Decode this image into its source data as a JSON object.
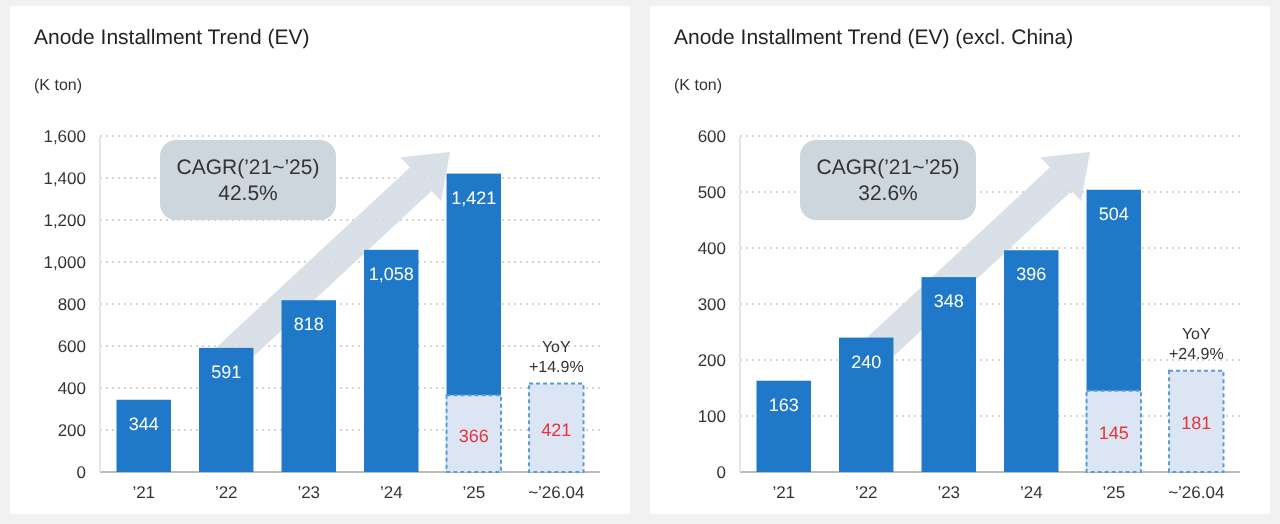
{
  "chart_data": [
    {
      "type": "bar",
      "title": "Anode Installment Trend (EV)",
      "ylabel": "(K ton)",
      "categories": [
        "’21",
        "’22",
        "’23",
        "’24",
        "’25",
        "~’26.04"
      ],
      "grid": "y",
      "ylim": [
        0,
        1600
      ],
      "yticks": [
        0,
        200,
        400,
        600,
        800,
        {
          "value": 1000,
          "label": "1,000"
        },
        {
          "value": 1200,
          "label": "1,200"
        },
        {
          "value": 1400,
          "label": "1,400"
        },
        {
          "value": 1600,
          "label": "1,600"
        }
      ],
      "series": [
        {
          "color": "#1f78c8",
          "values": [
            344,
            591,
            818,
            1058,
            1421,
            null
          ],
          "value_labels": [
            "344",
            "591",
            "818",
            "1,058",
            "1,421",
            null
          ]
        },
        {
          "color": "#dce5f4",
          "values": [
            null,
            null,
            null,
            null,
            366,
            421
          ],
          "value_labels": [
            null,
            null,
            null,
            null,
            "366",
            "421"
          ]
        }
      ],
      "annotations": [
        "CAGR(’21~’25)\n42.5%",
        {
          "text": "YoY\n+14.9%",
          "x": "~’26.04",
          "y": 421
        }
      ]
    },
    {
      "type": "bar",
      "title": "Anode Installment Trend (EV) (excl. China)",
      "ylabel": "(K ton)",
      "categories": [
        "’21",
        "’22",
        "’23",
        "’24",
        "’25",
        "~’26.04"
      ],
      "grid": "y",
      "ylim": [
        0,
        600
      ],
      "yticks": [
        0,
        100,
        200,
        300,
        400,
        500,
        600
      ],
      "series": [
        {
          "color": "#1f78c8",
          "values": [
            163,
            240,
            348,
            396,
            504,
            null
          ],
          "value_labels": [
            "163",
            "240",
            "348",
            "396",
            "504",
            null
          ]
        },
        {
          "color": "#dce5f4",
          "values": [
            null,
            null,
            null,
            null,
            145,
            181
          ],
          "value_labels": [
            null,
            null,
            null,
            null,
            "145",
            "181"
          ]
        }
      ],
      "annotations": [
        "CAGR(’21~’25)\n32.6%",
        {
          "text": "YoY\n+24.9%",
          "x": "~’26.04",
          "y": 181
        }
      ]
    }
  ]
}
